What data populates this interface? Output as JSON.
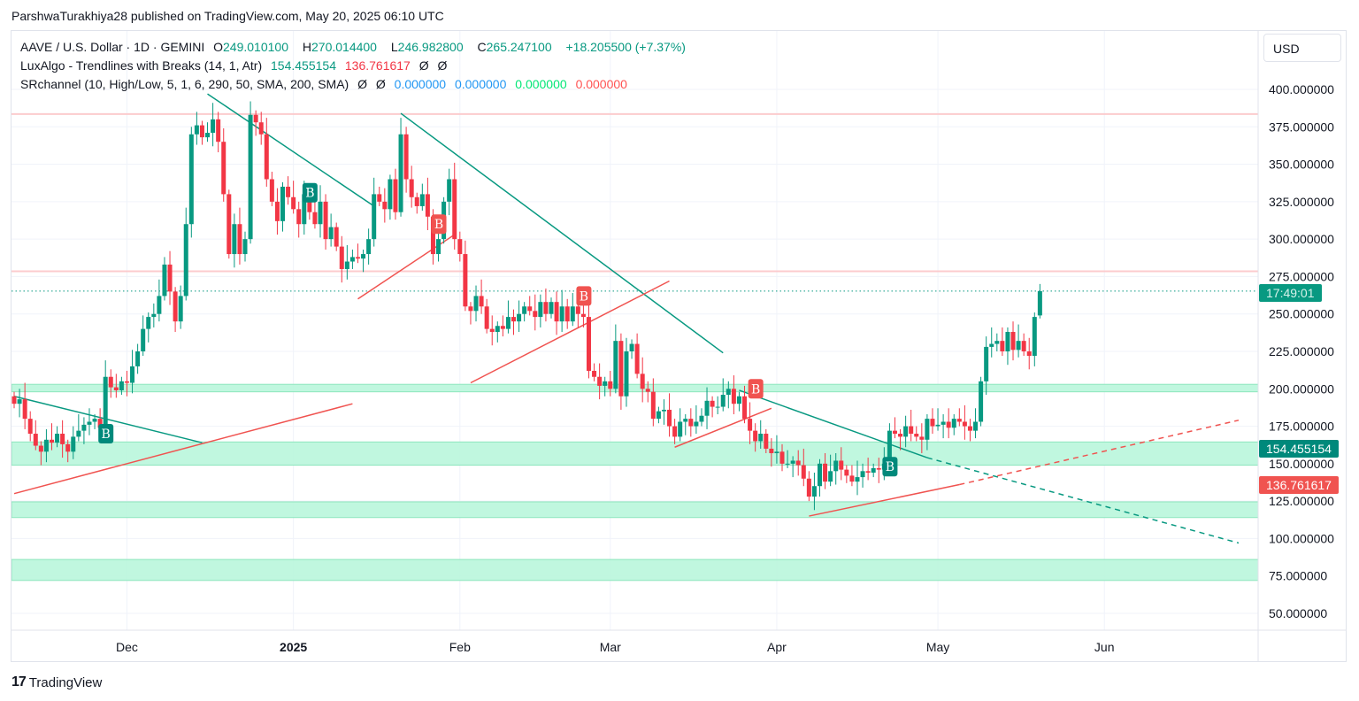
{
  "publish_line": "ParshwaTurakhiya28 published on TradingView.com, May 20, 2025 06:10 UTC",
  "symbol": {
    "name": "AAVE / U.S. Dollar · 1D · GEMINI",
    "o_label": "O",
    "o": "249.010100",
    "h_label": "H",
    "h": "270.014400",
    "l_label": "L",
    "l": "246.982800",
    "c_label": "C",
    "c": "265.247100",
    "change": "+18.205500 (+7.37%)"
  },
  "indicator1": {
    "name": "LuxAlgo - Trendlines with Breaks (14, 1, Atr)",
    "v1": "154.455154",
    "v2": "136.761617",
    "v3": "Ø",
    "v4": "Ø"
  },
  "indicator2": {
    "name": "SRchannel (10, High/Low, 5, 1, 6, 290, 50, SMA, 200, SMA)",
    "v1": "Ø",
    "v2": "Ø",
    "v3": "0.000000",
    "v4": "0.000000",
    "v5": "0.000000",
    "v6": "0.000000"
  },
  "currency": "USD",
  "labels": {
    "countdown": "17:49:01",
    "upper_trend": "154.455154",
    "lower_trend": "136.761617"
  },
  "footer": {
    "brand": "TradingView",
    "logo_mark": "17"
  },
  "colors": {
    "up": "#089981",
    "down": "#f23645",
    "zone": "#b9f6dc",
    "resistance": "#fccbcd"
  },
  "chart_data": {
    "type": "candlestick",
    "start_date": "2024-11-10",
    "last_candle": {
      "o": 249.0101,
      "h": 270.0144,
      "l": 246.9828,
      "c": 265.2471
    },
    "close": [
      190,
      193,
      180,
      170,
      162,
      158,
      166,
      164,
      170,
      163,
      158,
      168,
      172,
      176,
      178,
      180,
      174,
      208,
      201,
      199,
      205,
      204,
      215,
      225,
      240,
      248,
      250,
      262,
      283,
      265,
      245,
      262,
      310,
      370,
      376,
      368,
      371,
      380,
      365,
      330,
      290,
      310,
      290,
      300,
      383,
      378,
      370,
      340,
      325,
      312,
      335,
      328,
      320,
      310,
      330,
      318,
      310,
      325,
      300,
      308,
      295,
      280,
      285,
      288,
      287,
      290,
      300,
      330,
      325,
      320,
      340,
      318,
      370,
      340,
      328,
      322,
      330,
      315,
      290,
      300,
      325,
      340,
      300,
      290,
      255,
      252,
      262,
      255,
      240,
      238,
      242,
      240,
      248,
      245,
      250,
      255,
      252,
      248,
      258,
      250,
      258,
      245,
      255,
      245,
      255,
      250,
      248,
      212,
      208,
      202,
      205,
      200,
      232,
      195,
      225,
      230,
      210,
      200,
      198,
      180,
      185,
      186,
      175,
      168,
      178,
      180,
      175,
      178,
      182,
      192,
      188,
      188,
      196,
      200,
      190,
      195,
      180,
      172,
      165,
      170,
      160,
      157,
      158,
      150,
      150,
      152,
      149,
      140,
      128,
      135,
      150,
      138,
      145,
      152,
      146,
      142,
      138,
      141,
      145,
      144,
      147,
      146,
      150,
      172,
      170,
      168,
      175,
      170,
      168,
      166,
      180,
      175,
      176,
      178,
      174,
      180,
      178,
      175,
      172,
      178,
      205,
      228,
      230,
      232,
      225,
      238,
      226,
      232,
      225,
      222,
      248,
      265
    ],
    "y_ticks": [
      "400.000000",
      "375.000000",
      "350.000000",
      "325.000000",
      "300.000000",
      "275.000000",
      "250.000000",
      "225.000000",
      "200.000000",
      "175.000000",
      "150.000000",
      "125.000000",
      "100.000000",
      "75.000000",
      "50.000000"
    ],
    "y_tick_values": [
      400,
      375,
      350,
      325,
      300,
      275,
      250,
      225,
      200,
      175,
      150,
      125,
      100,
      75,
      50
    ],
    "x_ticks": [
      {
        "label": "Dec",
        "date": "2024-12-01"
      },
      {
        "label": "2025",
        "date": "2025-01-01"
      },
      {
        "label": "Feb",
        "date": "2025-02-01"
      },
      {
        "label": "Mar",
        "date": "2025-03-01"
      },
      {
        "label": "Apr",
        "date": "2025-04-01"
      },
      {
        "label": "May",
        "date": "2025-05-01"
      },
      {
        "label": "Jun",
        "date": "2025-06-01"
      }
    ],
    "ylim": [
      35,
      420
    ],
    "current_price": 265.2471,
    "resistance_lines": [
      383.5,
      278.5
    ],
    "support_zones": [
      [
        198,
        203
      ],
      [
        149,
        164.5
      ],
      [
        114,
        124.5
      ],
      [
        72,
        86
      ]
    ],
    "trendlines": [
      {
        "color": "up",
        "from": [
          "2024-11-10",
          195
        ],
        "to": [
          "2024-12-15",
          164
        ]
      },
      {
        "color": "up",
        "from": [
          "2024-12-16",
          397
        ],
        "to": [
          "2025-01-16",
          322
        ]
      },
      {
        "color": "up",
        "from": [
          "2025-01-21",
          384
        ],
        "to": [
          "2025-03-22",
          224
        ]
      },
      {
        "color": "up",
        "from": [
          "2025-03-25",
          199
        ],
        "to": [
          "2025-04-29",
          154
        ]
      },
      {
        "color": "up",
        "dashed": true,
        "from": [
          "2025-04-29",
          154
        ],
        "to": [
          "2025-06-26",
          97
        ]
      },
      {
        "color": "down",
        "from": [
          "2024-11-10",
          130
        ],
        "to": [
          "2025-01-12",
          190
        ]
      },
      {
        "color": "down",
        "from": [
          "2025-01-13",
          260
        ],
        "to": [
          "2025-01-31",
          303
        ]
      },
      {
        "color": "down",
        "from": [
          "2025-02-03",
          204
        ],
        "to": [
          "2025-03-12",
          272
        ]
      },
      {
        "color": "down",
        "from": [
          "2025-03-13",
          161
        ],
        "to": [
          "2025-03-31",
          187
        ]
      },
      {
        "color": "down",
        "from": [
          "2025-04-07",
          115
        ],
        "to": [
          "2025-05-05",
          136
        ]
      },
      {
        "color": "down",
        "dashed": true,
        "from": [
          "2025-05-05",
          136
        ],
        "to": [
          "2025-06-26",
          179
        ]
      }
    ],
    "break_markers": [
      {
        "label": "B",
        "type": "up",
        "date": "2024-11-27",
        "price": 170
      },
      {
        "label": "B",
        "type": "up",
        "date": "2025-01-04",
        "price": 331
      },
      {
        "label": "B",
        "type": "down",
        "date": "2025-01-28",
        "price": 310
      },
      {
        "label": "B",
        "type": "down",
        "date": "2025-02-24",
        "price": 262
      },
      {
        "label": "B",
        "type": "down",
        "date": "2025-03-28",
        "price": 200
      },
      {
        "label": "B",
        "type": "up",
        "date": "2025-04-22",
        "price": 148
      }
    ]
  }
}
